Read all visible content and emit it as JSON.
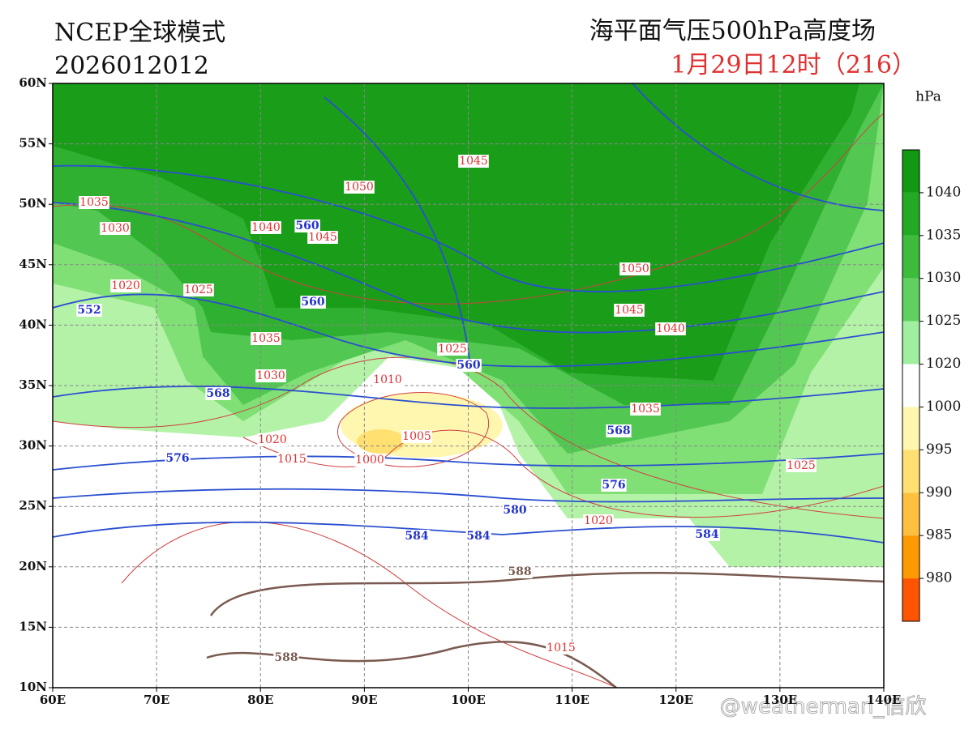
{
  "header": {
    "model": "NCEP全球模式",
    "init_time": "2026012012",
    "product": "海平面气压500hPa高度场",
    "valid_time": "1月29日12时（216）"
  },
  "lat_ticks": [
    "60N",
    "55N",
    "50N",
    "45N",
    "40N",
    "35N",
    "30N",
    "25N",
    "20N",
    "15N",
    "10N"
  ],
  "lon_ticks": [
    "60E",
    "70E",
    "80E",
    "90E",
    "100E",
    "110E",
    "120E",
    "130E",
    "140E"
  ],
  "colorbar": {
    "unit": "hPa",
    "labels": [
      "1040",
      "1035",
      "1030",
      "1025",
      "1020",
      "1000",
      "995",
      "990",
      "985",
      "980"
    ]
  },
  "pressure_labels": [
    "1045",
    "1050",
    "1035",
    "1030",
    "1040",
    "1045",
    "1020",
    "1025",
    "1050",
    "1045",
    "1040",
    "1035",
    "1025",
    "1010",
    "1030",
    "1035",
    "1005",
    "1020",
    "1015",
    "1000",
    "1025",
    "1020",
    "1015"
  ],
  "height_labels": [
    "560",
    "560",
    "552",
    "560",
    "568",
    "568",
    "576",
    "576",
    "580",
    "584",
    "584",
    "584"
  ],
  "line_588_labels": [
    "588",
    "588"
  ],
  "watermark": "@weatherman_信欣"
}
